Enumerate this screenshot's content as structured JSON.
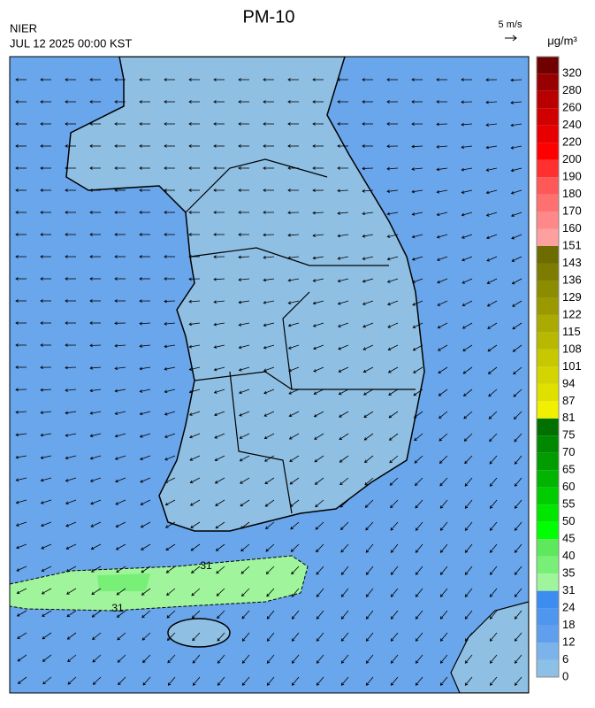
{
  "header": {
    "title": "PM-10",
    "agency": "NIER",
    "datetime": "JUL 12 2025 00:00 KST"
  },
  "wind_scale": {
    "label": "5 m/s"
  },
  "colorbar": {
    "unit": "μg/m³",
    "levels": [
      0,
      6,
      12,
      18,
      24,
      31,
      35,
      40,
      45,
      50,
      55,
      60,
      65,
      70,
      75,
      81,
      87,
      94,
      101,
      108,
      115,
      122,
      129,
      136,
      143,
      151,
      160,
      170,
      180,
      190,
      200,
      220,
      240,
      260,
      280,
      320
    ],
    "colors": [
      "#8cc0e6",
      "#7bb3ea",
      "#5f9fed",
      "#4f96ef",
      "#3d8cf0",
      "#a0f59c",
      "#78f078",
      "#5ee85e",
      "#00ff00",
      "#00e600",
      "#00cc00",
      "#00b400",
      "#009c00",
      "#008800",
      "#007000",
      "#f0f000",
      "#e0e000",
      "#d4d400",
      "#c8c800",
      "#b8b800",
      "#aaaa00",
      "#9a9a00",
      "#8c8c00",
      "#7c7c00",
      "#6c6c00",
      "#ffa0a0",
      "#ff8888",
      "#ff7070",
      "#ff5858",
      "#ff3030",
      "#ff0000",
      "#e80000",
      "#d00000",
      "#b80000",
      "#980000",
      "#700000"
    ]
  },
  "contour_labels": [
    "31",
    "31"
  ]
}
